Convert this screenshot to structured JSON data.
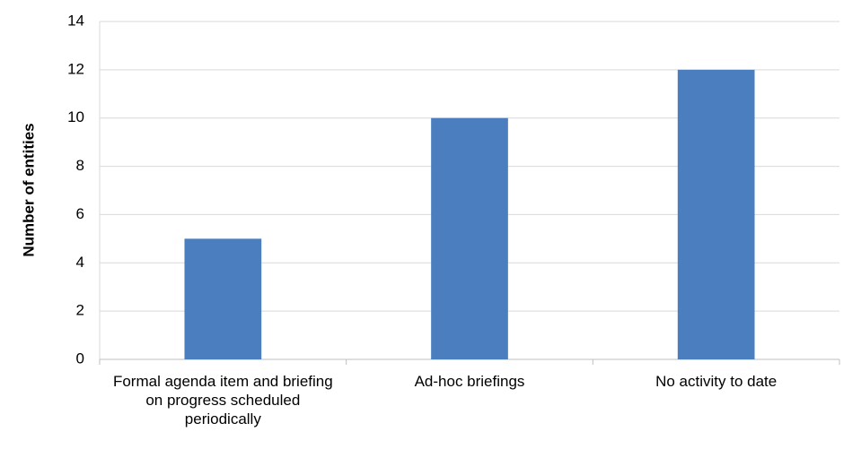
{
  "chart_data": {
    "type": "bar",
    "y_label": "Number of entities",
    "categories": [
      "Formal agenda item and briefing on progress scheduled periodically",
      "Ad-hoc briefings",
      "No activity to date"
    ],
    "values": [
      5,
      10,
      12
    ],
    "color": "#4a7ebf",
    "ylim": [
      0,
      14
    ],
    "yticks": [
      0,
      2,
      4,
      6,
      8,
      10,
      12,
      14
    ],
    "grid": true
  }
}
